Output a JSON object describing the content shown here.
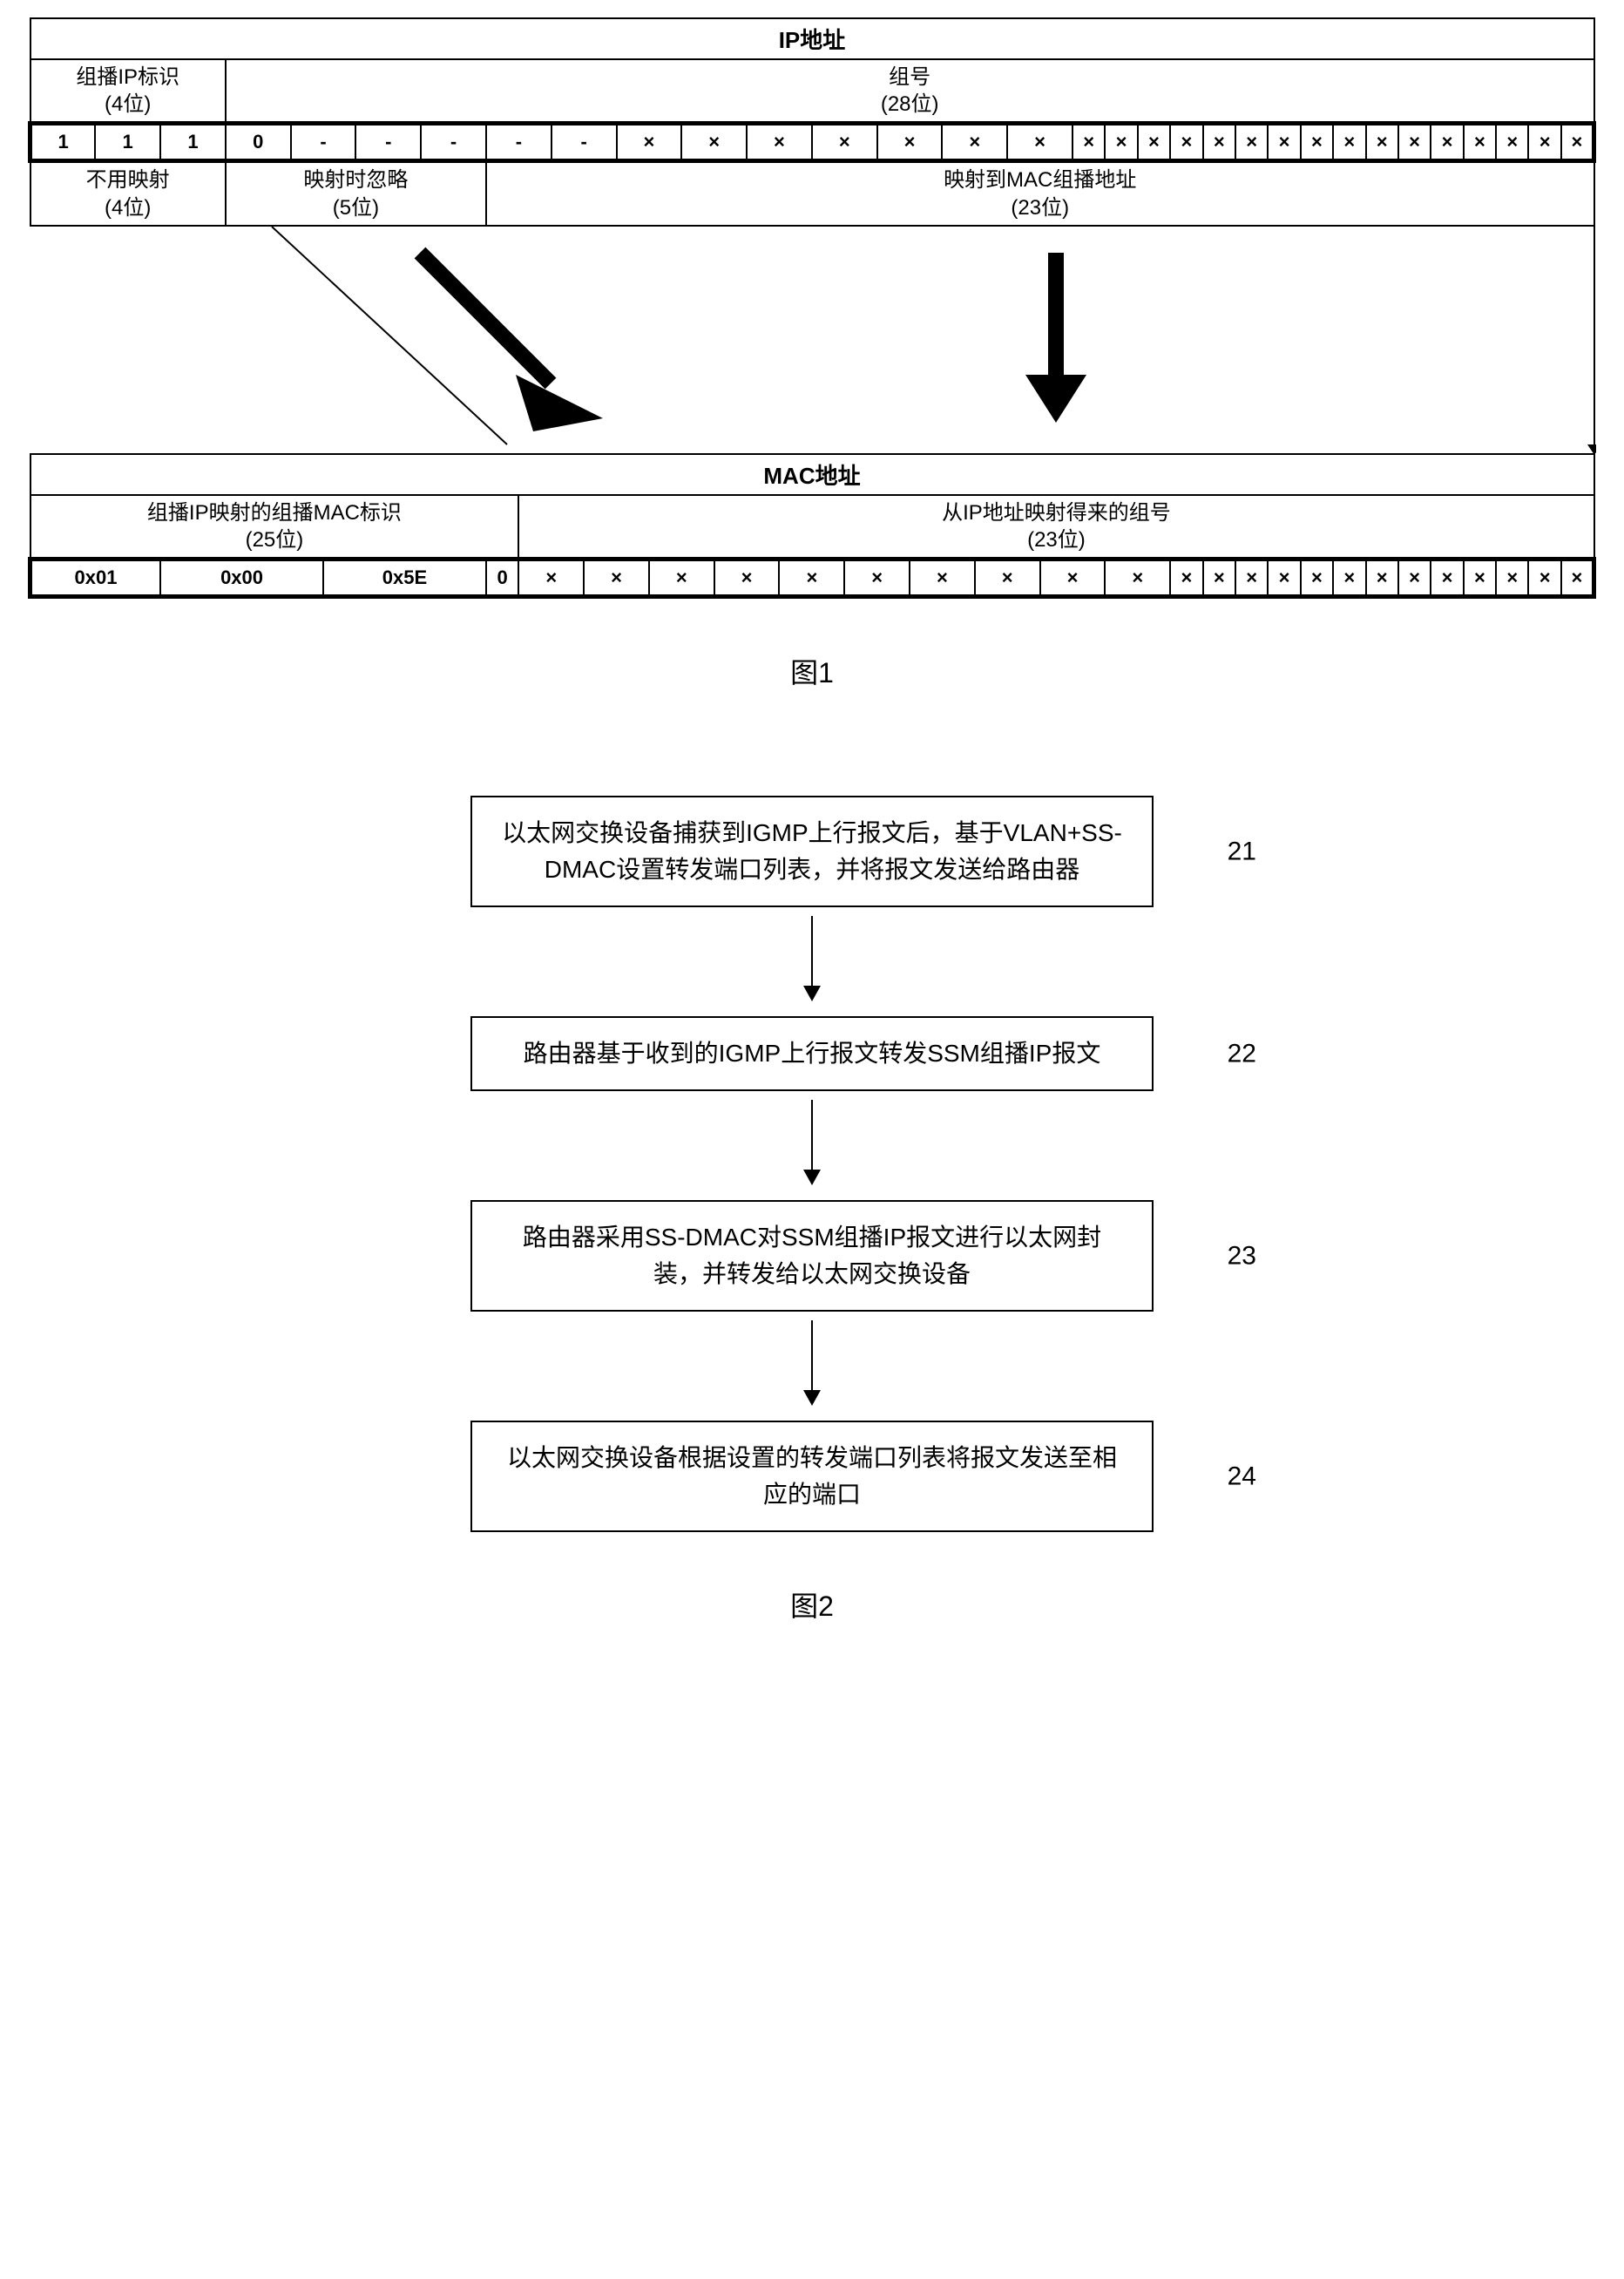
{
  "fig1": {
    "ip_title": "IP地址",
    "ip_col1": "组播IP标识\n(4位)",
    "ip_col2": "组号\n(28位)",
    "ip_bits_prefix": [
      "1",
      "1",
      "1",
      "0"
    ],
    "ip_bits_dash_count": 5,
    "ip_bits_x_count": 23,
    "ip_row3_col1": "不用映射\n(4位)",
    "ip_row3_col2": "映射时忽略\n(5位)",
    "ip_row3_col3": "映射到MAC组播地址\n(23位)",
    "mac_title": "MAC地址",
    "mac_col1": "组播IP映射的组播MAC标识\n(25位)",
    "mac_col2": "从IP地址映射得来的组号\n(23位)",
    "mac_prefix": [
      "0x01",
      "0x00",
      "0x5E",
      "0"
    ],
    "mac_x_count": 23,
    "caption": "图1",
    "colors": {
      "border": "#000000",
      "bg": "#ffffff"
    }
  },
  "fig2": {
    "steps": [
      {
        "text": "以太网交换设备捕获到IGMP上行报文后，基于VLAN+SS-DMAC设置转发端口列表，并将报文发送给路由器",
        "label": "21"
      },
      {
        "text": "路由器基于收到的IGMP上行报文转发SSM组播IP报文",
        "label": "22"
      },
      {
        "text": "路由器采用SS-DMAC对SSM组播IP报文进行以太网封装，并转发给以太网交换设备",
        "label": "23"
      },
      {
        "text": "以太网交换设备根据设置的转发端口列表将报文发送至相应的端口",
        "label": "24"
      }
    ],
    "caption": "图2",
    "arrow_length": 80
  }
}
